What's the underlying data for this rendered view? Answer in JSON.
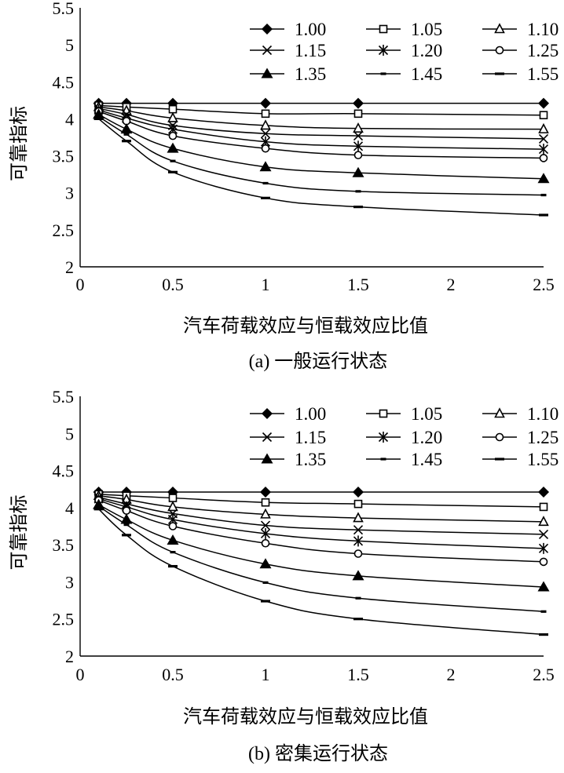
{
  "chart_data": [
    {
      "type": "line",
      "caption": "(a) 一般运行状态",
      "xlabel": "汽车荷载效应与恒载效应比值",
      "ylabel": "可靠指标",
      "xlim": [
        0,
        2.5
      ],
      "ylim": [
        2,
        5.5
      ],
      "xticks": [
        "0",
        "0.5",
        "1",
        "1.5",
        "2",
        "2.5"
      ],
      "yticks": [
        "2",
        "2.5",
        "3",
        "3.5",
        "4",
        "4.5",
        "5",
        "5.5"
      ],
      "grid": false,
      "legend_position": "top-right",
      "x": [
        0.1,
        0.25,
        0.5,
        1.0,
        1.5,
        2.5
      ],
      "series": [
        {
          "name": "1.00",
          "marker": "filled-diamond",
          "values": [
            4.21,
            4.21,
            4.21,
            4.21,
            4.21,
            4.21
          ]
        },
        {
          "name": "1.05",
          "marker": "open-square",
          "values": [
            4.18,
            4.16,
            4.13,
            4.07,
            4.07,
            4.05
          ]
        },
        {
          "name": "1.10",
          "marker": "open-triangle",
          "values": [
            4.16,
            4.11,
            4.01,
            3.91,
            3.87,
            3.86
          ]
        },
        {
          "name": "1.15",
          "marker": "x",
          "values": [
            4.14,
            4.06,
            3.91,
            3.8,
            3.77,
            3.73
          ]
        },
        {
          "name": "1.20",
          "marker": "asterisk",
          "values": [
            4.12,
            4.01,
            3.86,
            3.69,
            3.63,
            3.59
          ]
        },
        {
          "name": "1.25",
          "marker": "open-circle",
          "values": [
            4.1,
            3.97,
            3.77,
            3.6,
            3.51,
            3.47
          ]
        },
        {
          "name": "1.35",
          "marker": "filled-triangle",
          "values": [
            4.06,
            3.86,
            3.6,
            3.35,
            3.27,
            3.19
          ]
        },
        {
          "name": "1.45",
          "marker": "short-dash",
          "values": [
            4.03,
            3.79,
            3.43,
            3.13,
            3.02,
            2.97
          ]
        },
        {
          "name": "1.55",
          "marker": "long-dash",
          "values": [
            4.0,
            3.7,
            3.28,
            2.93,
            2.81,
            2.7
          ]
        }
      ]
    },
    {
      "type": "line",
      "caption": "(b) 密集运行状态",
      "xlabel": "汽车荷载效应与恒载效应比值",
      "ylabel": "可靠指标",
      "xlim": [
        0,
        2.5
      ],
      "ylim": [
        2,
        5.5
      ],
      "xticks": [
        "0",
        "0.5",
        "1",
        "1.5",
        "2",
        "2.5"
      ],
      "yticks": [
        "2",
        "2.5",
        "3",
        "3.5",
        "4",
        "4.5",
        "5",
        "5.5"
      ],
      "grid": false,
      "legend_position": "top-right",
      "x": [
        0.1,
        0.25,
        0.5,
        1.0,
        1.5,
        2.5
      ],
      "series": [
        {
          "name": "1.00",
          "marker": "filled-diamond",
          "values": [
            4.21,
            4.21,
            4.21,
            4.21,
            4.21,
            4.21
          ]
        },
        {
          "name": "1.05",
          "marker": "open-square",
          "values": [
            4.18,
            4.16,
            4.13,
            4.07,
            4.05,
            4.01
          ]
        },
        {
          "name": "1.10",
          "marker": "open-triangle",
          "values": [
            4.16,
            4.11,
            4.01,
            3.91,
            3.86,
            3.81
          ]
        },
        {
          "name": "1.15",
          "marker": "x",
          "values": [
            4.14,
            4.05,
            3.92,
            3.76,
            3.7,
            3.64
          ]
        },
        {
          "name": "1.20",
          "marker": "asterisk",
          "values": [
            4.12,
            4.01,
            3.84,
            3.65,
            3.55,
            3.45
          ]
        },
        {
          "name": "1.25",
          "marker": "open-circle",
          "values": [
            4.1,
            3.96,
            3.75,
            3.52,
            3.38,
            3.27
          ]
        },
        {
          "name": "1.35",
          "marker": "filled-triangle",
          "values": [
            4.04,
            3.84,
            3.56,
            3.24,
            3.08,
            2.93
          ]
        },
        {
          "name": "1.45",
          "marker": "short-dash",
          "values": [
            4.02,
            3.77,
            3.4,
            2.99,
            2.78,
            2.6
          ]
        },
        {
          "name": "1.55",
          "marker": "long-dash",
          "values": [
            3.98,
            3.63,
            3.21,
            2.74,
            2.5,
            2.29
          ]
        }
      ]
    }
  ]
}
